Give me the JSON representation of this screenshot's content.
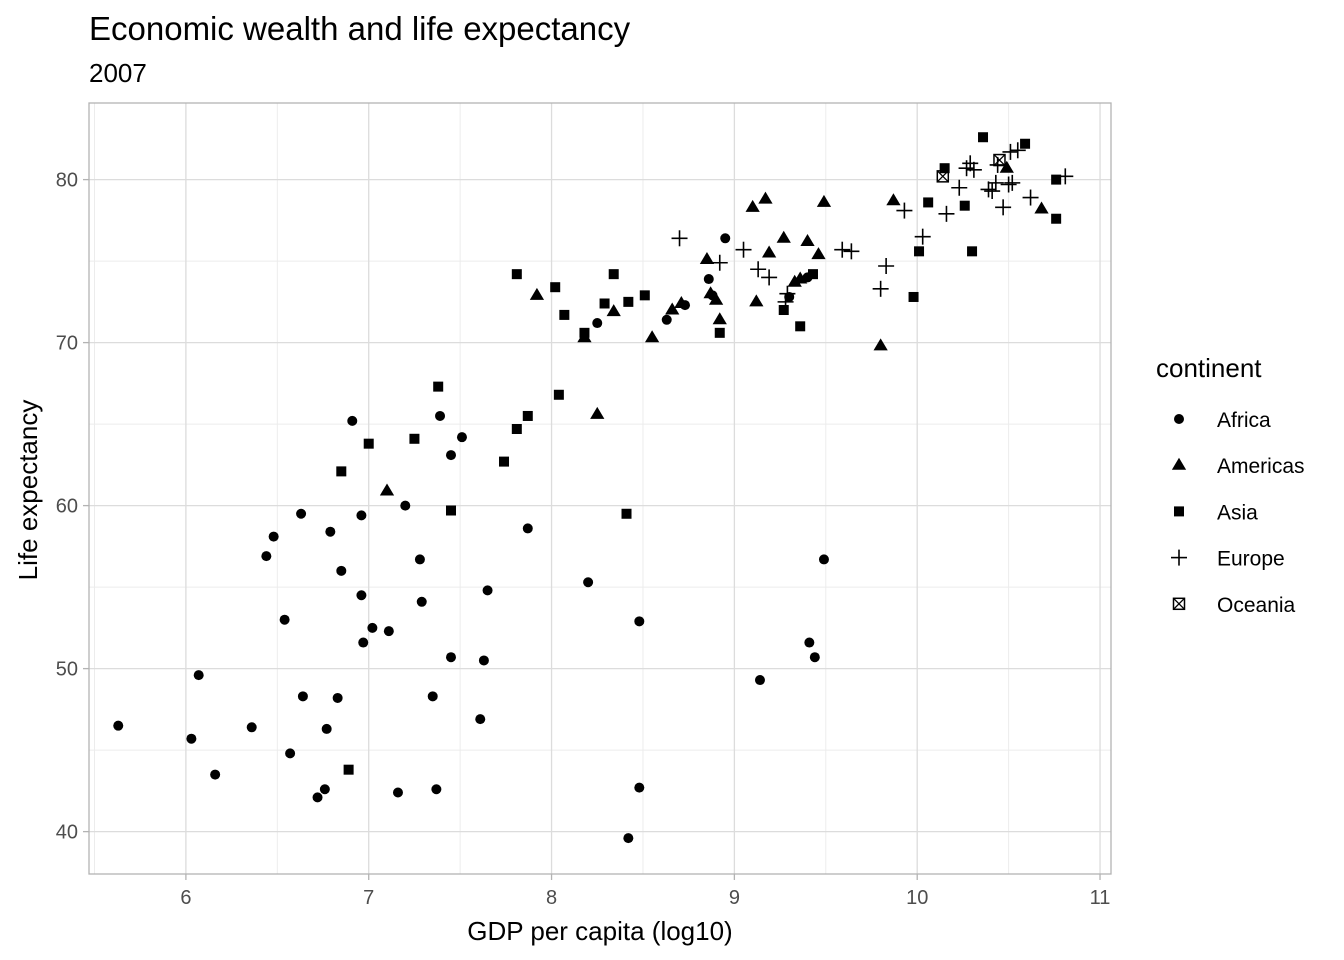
{
  "chart_data": {
    "type": "scatter",
    "title": "Economic wealth and life expectancy",
    "subtitle": "2007",
    "xlabel": "GDP per capita (log10)",
    "ylabel": "Life expectancy",
    "xlim": [
      5.47,
      11.06
    ],
    "ylim": [
      37.4,
      84.7
    ],
    "x_ticks": [
      6,
      7,
      8,
      9,
      10,
      11
    ],
    "y_ticks": [
      40,
      50,
      60,
      70,
      80
    ],
    "x_tick_labels": [
      "6",
      "7",
      "8",
      "9",
      "10",
      "11"
    ],
    "y_tick_labels": [
      "40",
      "50",
      "60",
      "70",
      "80"
    ],
    "grid": true,
    "legend": {
      "title": "continent",
      "position": "right",
      "entries": [
        {
          "label": "Africa",
          "shape": "circle"
        },
        {
          "label": "Americas",
          "shape": "triangle"
        },
        {
          "label": "Asia",
          "shape": "square"
        },
        {
          "label": "Europe",
          "shape": "plus"
        },
        {
          "label": "Oceania",
          "shape": "square-cross"
        }
      ]
    },
    "series": [
      {
        "name": "Africa",
        "shape": "circle",
        "points": [
          [
            5.63,
            46.5
          ],
          [
            6.03,
            45.7
          ],
          [
            6.07,
            49.6
          ],
          [
            6.16,
            43.5
          ],
          [
            6.36,
            46.4
          ],
          [
            6.44,
            56.9
          ],
          [
            6.48,
            58.1
          ],
          [
            6.54,
            53.0
          ],
          [
            6.57,
            44.8
          ],
          [
            6.63,
            59.5
          ],
          [
            6.64,
            48.3
          ],
          [
            6.72,
            42.1
          ],
          [
            6.76,
            42.6
          ],
          [
            6.77,
            46.3
          ],
          [
            6.79,
            58.4
          ],
          [
            6.83,
            48.2
          ],
          [
            6.85,
            56.0
          ],
          [
            6.91,
            65.2
          ],
          [
            6.96,
            54.5
          ],
          [
            6.96,
            59.4
          ],
          [
            6.97,
            51.6
          ],
          [
            7.02,
            52.5
          ],
          [
            7.11,
            52.3
          ],
          [
            7.16,
            42.4
          ],
          [
            7.2,
            60.0
          ],
          [
            7.28,
            56.7
          ],
          [
            7.29,
            54.1
          ],
          [
            7.35,
            48.3
          ],
          [
            7.37,
            42.6
          ],
          [
            7.39,
            65.5
          ],
          [
            7.45,
            63.1
          ],
          [
            7.45,
            50.7
          ],
          [
            7.51,
            64.2
          ],
          [
            7.61,
            46.9
          ],
          [
            7.63,
            50.5
          ],
          [
            7.65,
            54.8
          ],
          [
            7.87,
            58.6
          ],
          [
            8.2,
            55.3
          ],
          [
            8.25,
            71.2
          ],
          [
            8.42,
            39.6
          ],
          [
            8.48,
            52.9
          ],
          [
            8.48,
            42.7
          ],
          [
            8.63,
            71.4
          ],
          [
            8.73,
            72.3
          ],
          [
            8.86,
            73.9
          ],
          [
            8.88,
            72.9
          ],
          [
            8.95,
            76.4
          ],
          [
            9.14,
            49.3
          ],
          [
            9.3,
            72.8
          ],
          [
            9.4,
            74.0
          ],
          [
            9.41,
            51.6
          ],
          [
            9.44,
            50.7
          ],
          [
            9.49,
            56.7
          ]
        ]
      },
      {
        "name": "Americas",
        "shape": "triangle",
        "points": [
          [
            7.1,
            60.9
          ],
          [
            7.92,
            72.9
          ],
          [
            8.18,
            70.3
          ],
          [
            8.25,
            65.6
          ],
          [
            8.34,
            71.9
          ],
          [
            8.55,
            70.3
          ],
          [
            8.66,
            72.0
          ],
          [
            8.71,
            72.4
          ],
          [
            8.85,
            75.1
          ],
          [
            8.87,
            73.0
          ],
          [
            8.9,
            72.6
          ],
          [
            8.92,
            71.4
          ],
          [
            9.1,
            78.3
          ],
          [
            9.12,
            72.5
          ],
          [
            9.17,
            78.8
          ],
          [
            9.19,
            75.5
          ],
          [
            9.27,
            76.4
          ],
          [
            9.33,
            73.7
          ],
          [
            9.36,
            73.9
          ],
          [
            9.4,
            76.2
          ],
          [
            9.46,
            75.4
          ],
          [
            9.49,
            78.6
          ],
          [
            9.8,
            69.8
          ],
          [
            9.87,
            78.7
          ],
          [
            10.49,
            80.7
          ],
          [
            10.68,
            78.2
          ]
        ]
      },
      {
        "name": "Asia",
        "shape": "square",
        "points": [
          [
            6.85,
            62.1
          ],
          [
            6.89,
            43.8
          ],
          [
            7.0,
            63.8
          ],
          [
            7.25,
            64.1
          ],
          [
            7.38,
            67.3
          ],
          [
            7.45,
            59.7
          ],
          [
            7.74,
            62.7
          ],
          [
            7.81,
            74.2
          ],
          [
            7.81,
            64.7
          ],
          [
            7.87,
            65.5
          ],
          [
            8.02,
            73.4
          ],
          [
            8.04,
            66.8
          ],
          [
            8.07,
            71.7
          ],
          [
            8.18,
            70.6
          ],
          [
            8.29,
            72.4
          ],
          [
            8.34,
            74.2
          ],
          [
            8.41,
            59.5
          ],
          [
            8.42,
            72.5
          ],
          [
            8.51,
            72.9
          ],
          [
            8.92,
            70.6
          ],
          [
            9.27,
            72.0
          ],
          [
            9.36,
            71.0
          ],
          [
            9.43,
            74.2
          ],
          [
            9.98,
            72.8
          ],
          [
            10.01,
            75.6
          ],
          [
            10.06,
            78.6
          ],
          [
            10.15,
            80.7
          ],
          [
            10.26,
            78.4
          ],
          [
            10.3,
            75.6
          ],
          [
            10.36,
            82.6
          ],
          [
            10.59,
            82.2
          ],
          [
            10.76,
            80.0
          ],
          [
            10.76,
            77.6
          ]
        ]
      },
      {
        "name": "Europe",
        "shape": "plus",
        "points": [
          [
            8.7,
            76.4
          ],
          [
            8.92,
            74.9
          ],
          [
            9.05,
            75.7
          ],
          [
            9.13,
            74.5
          ],
          [
            9.19,
            74.0
          ],
          [
            9.28,
            72.5
          ],
          [
            9.29,
            73.0
          ],
          [
            9.59,
            75.7
          ],
          [
            9.64,
            75.6
          ],
          [
            9.8,
            73.3
          ],
          [
            9.83,
            74.7
          ],
          [
            9.93,
            78.1
          ],
          [
            10.03,
            76.5
          ],
          [
            10.16,
            77.9
          ],
          [
            10.23,
            79.5
          ],
          [
            10.27,
            80.7
          ],
          [
            10.29,
            81.0
          ],
          [
            10.31,
            80.6
          ],
          [
            10.39,
            79.4
          ],
          [
            10.41,
            79.3
          ],
          [
            10.43,
            79.8
          ],
          [
            10.44,
            80.9
          ],
          [
            10.47,
            78.3
          ],
          [
            10.5,
            79.7
          ],
          [
            10.51,
            81.7
          ],
          [
            10.52,
            79.8
          ],
          [
            10.55,
            81.8
          ],
          [
            10.62,
            78.9
          ],
          [
            10.81,
            80.2
          ]
        ]
      },
      {
        "name": "Oceania",
        "shape": "square-cross",
        "points": [
          [
            10.14,
            80.2
          ],
          [
            10.45,
            81.2
          ]
        ]
      }
    ]
  }
}
